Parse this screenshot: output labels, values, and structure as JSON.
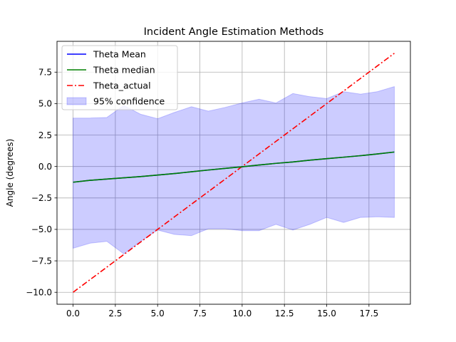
{
  "chart_data": {
    "type": "line",
    "title": "Incident Angle Estimation Methods",
    "xlabel": "",
    "ylabel": "Angle (degrees)",
    "xlim": [
      -0.95,
      19.95
    ],
    "ylim": [
      -10.95,
      9.95
    ],
    "grid": true,
    "legend_position": "top-left",
    "x_ticks": [
      0,
      2.5,
      5,
      7.5,
      10,
      12.5,
      15,
      17.5
    ],
    "x_tick_labels": [
      "0.0",
      "2.5",
      "5.0",
      "7.5",
      "10.0",
      "12.5",
      "15.0",
      "17.5"
    ],
    "y_ticks": [
      -10,
      -7.5,
      -5,
      -2.5,
      0,
      2.5,
      5,
      7.5
    ],
    "y_tick_labels": [
      "−10.0",
      "−7.5",
      "−5.0",
      "−2.5",
      "0.0",
      "2.5",
      "5.0",
      "7.5"
    ],
    "x": [
      0,
      1,
      2,
      3,
      4,
      5,
      6,
      7,
      8,
      9,
      10,
      11,
      12,
      13,
      14,
      15,
      16,
      17,
      18,
      19
    ],
    "series": [
      {
        "name": "Theta Mean",
        "color": "#0000ff",
        "style": "solid",
        "values": [
          -1.25,
          -1.1,
          -1.0,
          -0.9,
          -0.8,
          -0.68,
          -0.56,
          -0.42,
          -0.28,
          -0.15,
          -0.02,
          0.12,
          0.25,
          0.36,
          0.5,
          0.62,
          0.74,
          0.86,
          1.0,
          1.15
        ]
      },
      {
        "name": "Theta median",
        "color": "#008000",
        "style": "solid",
        "values": [
          -1.25,
          -1.1,
          -1.0,
          -0.9,
          -0.8,
          -0.68,
          -0.56,
          -0.42,
          -0.28,
          -0.15,
          -0.02,
          0.12,
          0.25,
          0.36,
          0.5,
          0.62,
          0.74,
          0.86,
          1.0,
          1.15
        ]
      },
      {
        "name": "Theta_actual",
        "color": "#ff0000",
        "style": "dashdot",
        "values": [
          -10,
          -9,
          -8,
          -7,
          -6,
          -5,
          -4,
          -3,
          -2,
          -1,
          0,
          1,
          2,
          3,
          4,
          5,
          6,
          7,
          8,
          9
        ]
      }
    ],
    "confidence_band": {
      "name": "95% confidence",
      "color": "#0000ff",
      "lower": [
        -6.5,
        -6.1,
        -5.95,
        -6.95,
        -5.95,
        -5.05,
        -5.4,
        -5.5,
        -4.95,
        -4.95,
        -5.1,
        -5.1,
        -4.6,
        -5.05,
        -4.6,
        -4.05,
        -4.45,
        -4.05,
        -4.0,
        -4.05
      ],
      "upper": [
        3.85,
        3.85,
        3.9,
        4.85,
        4.15,
        3.8,
        4.3,
        4.75,
        4.4,
        4.7,
        5.05,
        5.35,
        5.05,
        5.8,
        5.55,
        5.4,
        5.95,
        5.75,
        5.95,
        6.35
      ]
    }
  }
}
